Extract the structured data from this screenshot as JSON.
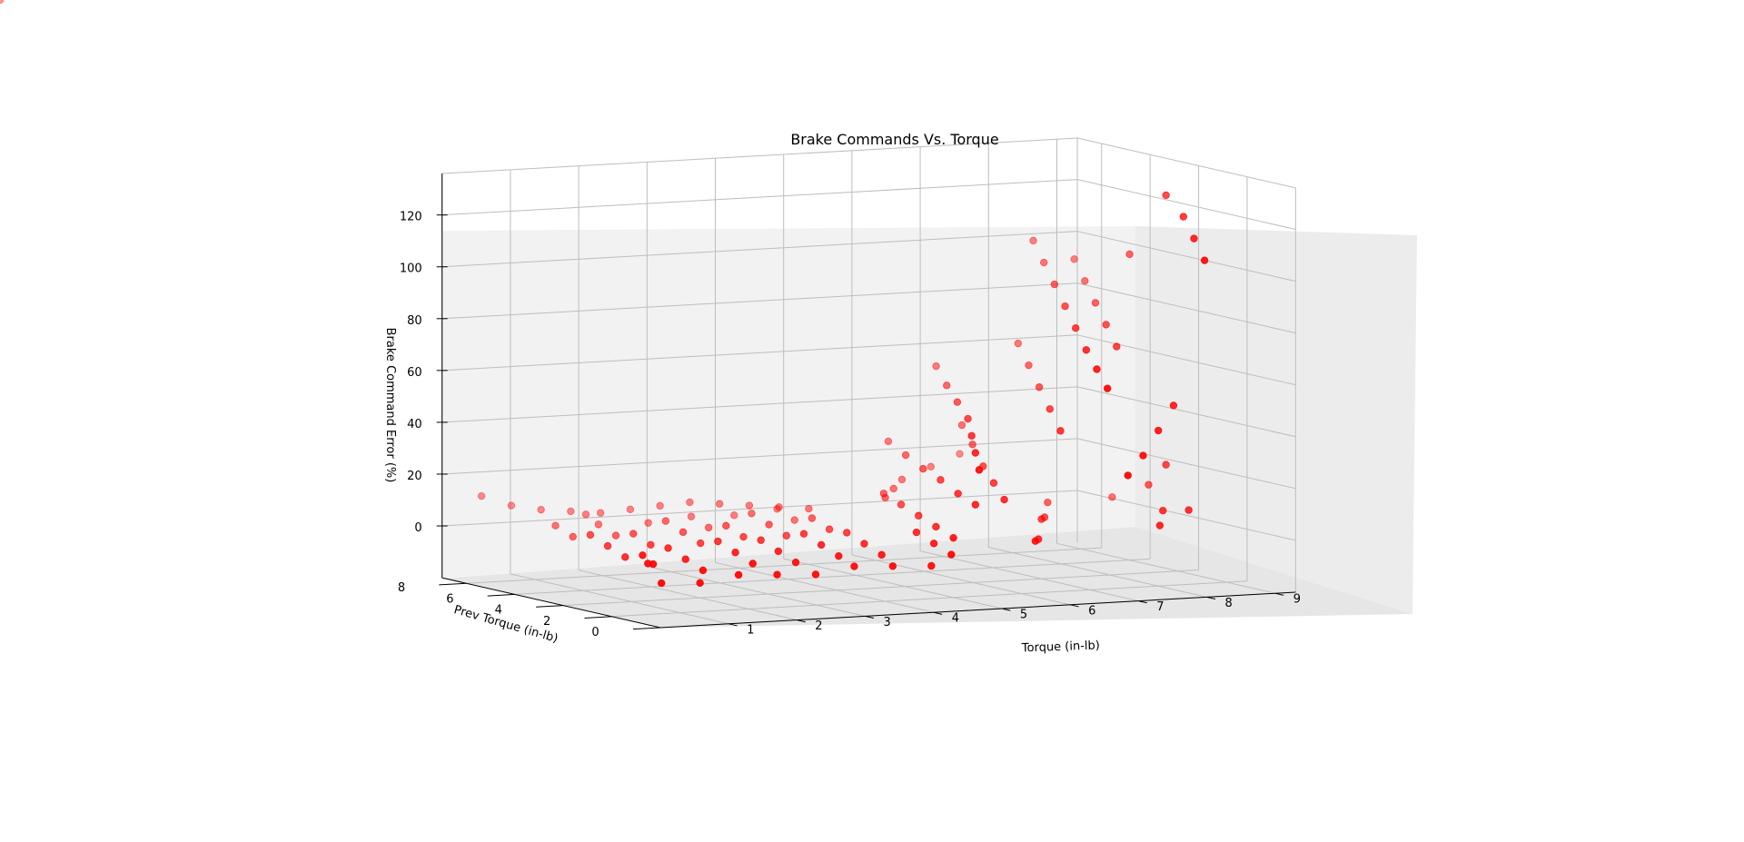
{
  "chart_data": {
    "type": "scatter",
    "projection": "3d",
    "title": "Brake Commands Vs. Torque",
    "xlabel": "Torque (in-lb)",
    "ylabel": "Prev Torque (in-lb)",
    "zlabel": "Brake Command Error  (%)",
    "xlim": [
      0,
      9.3
    ],
    "ylim": [
      0,
      9
    ],
    "zlim": [
      -20,
      136
    ],
    "x_ticks": [
      "1",
      "2",
      "3",
      "4",
      "5",
      "6",
      "7",
      "8",
      "9"
    ],
    "y_ticks": [
      "0",
      "2",
      "4",
      "6",
      "8"
    ],
    "z_ticks": [
      "0",
      "20",
      "40",
      "60",
      "80",
      "100",
      "120"
    ],
    "grid": true,
    "legend": "none",
    "marker_color": "#ff0000",
    "series": [
      {
        "x": [
          0.25,
          0.35,
          0.45,
          0.55,
          0.65,
          0.75,
          0.85,
          0.95,
          1.05,
          1.15,
          1.25,
          1.35,
          1.45,
          1.55,
          1.65,
          1.75,
          1.85,
          1.95,
          2.05,
          2.15,
          2.25,
          2.35,
          2.45,
          2.55,
          2.65,
          2.75,
          2.85,
          2.95,
          3.05,
          3.15,
          3.25,
          3.35,
          3.45,
          3.55,
          3.65,
          3.75,
          3.85,
          3.95,
          4.05,
          4.15,
          4.25,
          4.35,
          4.45,
          4.55,
          4.65,
          4.75,
          4.85,
          0.4,
          0.8,
          1.2,
          1.6,
          2.0,
          2.4,
          2.8,
          3.2,
          3.6,
          4.0,
          4.4,
          4.8,
          0.3,
          0.9,
          1.5,
          2.1,
          2.7,
          3.3,
          3.9,
          4.5,
          5.0,
          5.1,
          5.2,
          5.3,
          5.4,
          5.5,
          5.6,
          5.7,
          5.8,
          5.9,
          6.0,
          5.2,
          5.5,
          5.8,
          6.1,
          6.3,
          6.5,
          6.7,
          6.9,
          7.1,
          7.3,
          7.5,
          7.7,
          7.9,
          8.1,
          8.3,
          8.5,
          8.7,
          8.9,
          9.0,
          9.1,
          6.1,
          6.3,
          6.5,
          6.7,
          6.9,
          7.1,
          7.3,
          7.5,
          7.7,
          7.9,
          8.1,
          8.3,
          8.5,
          8.7,
          8.9,
          9.0,
          9.1,
          6.2,
          6.6,
          7.0,
          7.4,
          7.8,
          8.2,
          8.6,
          9.0,
          7.2,
          7.6,
          8.0,
          8.4,
          8.8,
          5.6,
          5.9,
          6.2,
          6.8,
          7.4,
          8.0
        ],
        "y": [
          1.0,
          1.5,
          2.0,
          3.0,
          4.0,
          5.0,
          6.0,
          7.0,
          1.2,
          2.2,
          3.2,
          4.2,
          5.2,
          6.2,
          7.2,
          8.0,
          1.4,
          2.4,
          3.4,
          4.4,
          5.4,
          6.4,
          7.4,
          1.6,
          2.6,
          3.6,
          4.6,
          5.6,
          6.6,
          7.6,
          1.8,
          2.8,
          3.8,
          4.8,
          5.8,
          6.8,
          7.8,
          2.0,
          3.0,
          4.0,
          5.0,
          6.0,
          7.0,
          8.0,
          1.1,
          2.1,
          3.1,
          8.5,
          8.4,
          8.3,
          8.2,
          8.1,
          8.0,
          7.9,
          7.8,
          7.7,
          7.6,
          7.5,
          7.4,
          0.8,
          0.9,
          1.0,
          1.1,
          1.2,
          1.3,
          1.4,
          1.5,
          2.0,
          3.0,
          4.0,
          5.0,
          6.0,
          2.5,
          3.5,
          4.5,
          5.5,
          6.5,
          7.5,
          1.5,
          2.5,
          3.5,
          4.5,
          5.5,
          6.5,
          7.5,
          1.0,
          2.0,
          3.0,
          4.0,
          5.0,
          6.0,
          7.0,
          8.0,
          1.5,
          2.5,
          3.5,
          4.5,
          5.5,
          3.0,
          4.0,
          5.0,
          6.0,
          7.0,
          3.5,
          4.5,
          5.5,
          6.5,
          7.5,
          4.0,
          5.0,
          6.0,
          7.0,
          8.0,
          6.0,
          7.0,
          2.0,
          3.0,
          4.0,
          5.0,
          6.0,
          2.5,
          3.5,
          4.5,
          1.0,
          1.5,
          2.0,
          2.5,
          3.0,
          6.5,
          7.0,
          7.5,
          8.0,
          8.5,
          8.8
        ],
        "z": [
          2,
          1,
          3,
          0,
          2,
          4,
          1,
          3,
          -2,
          0,
          2,
          1,
          3,
          0,
          2,
          4,
          -1,
          1,
          3,
          0,
          2,
          4,
          1,
          -2,
          0,
          2,
          1,
          3,
          0,
          2,
          -1,
          1,
          3,
          0,
          2,
          4,
          1,
          -2,
          0,
          2,
          1,
          3,
          0,
          2,
          -1,
          1,
          3,
          12,
          8,
          6,
          5,
          4,
          5,
          6,
          7,
          6,
          5,
          4,
          3,
          -5,
          -6,
          -4,
          -5,
          -6,
          -4,
          -5,
          -6,
          3,
          5,
          7,
          9,
          11,
          14,
          16,
          19,
          21,
          24,
          27,
          30,
          34,
          38,
          42,
          46,
          50,
          55,
          60,
          65,
          70,
          76,
          82,
          88,
          94,
          100,
          106,
          112,
          118,
          124,
          10,
          14,
          18,
          22,
          28,
          33,
          38,
          44,
          50,
          56,
          62,
          68,
          74,
          80,
          86,
          92,
          98,
          2,
          0,
          -2,
          3,
          1,
          4,
          2,
          5,
          20,
          26,
          32,
          40,
          48,
          6,
          8,
          10,
          12,
          15,
          18
        ]
      }
    ]
  }
}
